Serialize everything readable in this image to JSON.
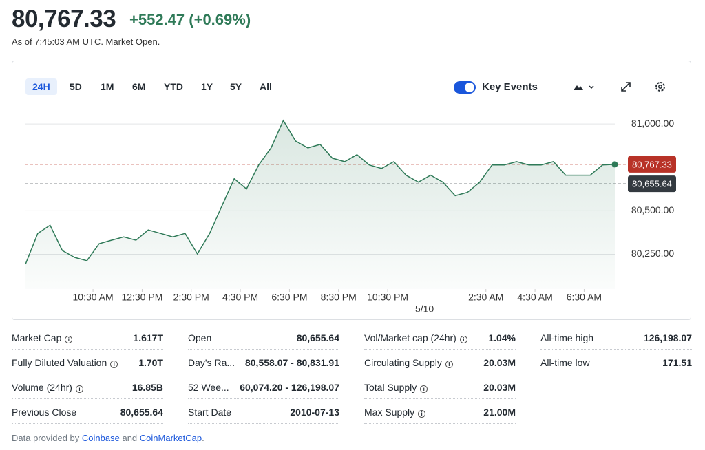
{
  "header": {
    "price": "80,767.33",
    "change": "+552.47",
    "change_percent": "(+0.69%)",
    "subtitle": "As of 7:45:03 AM UTC. Market Open."
  },
  "tabs": [
    "24H",
    "5D",
    "1M",
    "6M",
    "YTD",
    "1Y",
    "5Y",
    "All"
  ],
  "active_tab": 0,
  "key_events": {
    "label": "Key Events",
    "on": true
  },
  "chart_data": {
    "type": "line",
    "x": [
      0,
      0.5,
      1,
      1.5,
      2,
      2.5,
      3,
      3.5,
      4,
      4.5,
      5,
      5.5,
      6,
      6.5,
      7,
      7.5,
      8,
      8.5,
      9,
      9.5,
      10,
      10.5,
      11,
      11.5,
      12,
      12.5,
      13,
      13.5,
      14,
      14.5,
      15,
      15.5,
      16,
      16.5,
      17,
      17.5,
      18,
      18.5,
      19,
      19.5,
      20,
      20.5,
      21,
      21.5,
      22,
      22.5,
      23,
      23.5,
      24
    ],
    "series": [
      {
        "name": "Price",
        "color": "#2f7a58",
        "values": [
          80193,
          80370,
          80417,
          80272,
          80232,
          80213,
          80311,
          80331,
          80350,
          80331,
          80390,
          80370,
          80350,
          80370,
          80252,
          80370,
          80528,
          80685,
          80626,
          80764,
          80862,
          81020,
          80902,
          80862,
          80882,
          80803,
          80783,
          80823,
          80764,
          80744,
          80783,
          80705,
          80665,
          80705,
          80665,
          80587,
          80606,
          80665,
          80764,
          80764,
          80783,
          80764,
          80764,
          80783,
          80705,
          80705,
          80705,
          80764,
          80767.33
        ]
      }
    ],
    "xlim": [
      0,
      24
    ],
    "xticks": [
      {
        "value": 2.75,
        "label": "10:30 AM"
      },
      {
        "value": 4.75,
        "label": "12:30 PM"
      },
      {
        "value": 6.75,
        "label": "2:30 PM"
      },
      {
        "value": 8.75,
        "label": "4:30 PM"
      },
      {
        "value": 10.75,
        "label": "6:30 PM"
      },
      {
        "value": 12.75,
        "label": "8:30 PM"
      },
      {
        "value": 14.75,
        "label": "10:30 PM"
      },
      {
        "value": 18.75,
        "label": "2:30 AM"
      },
      {
        "value": 20.75,
        "label": "4:30 AM"
      },
      {
        "value": 22.75,
        "label": "6:30 AM"
      }
    ],
    "date_marker": {
      "value": 16.25,
      "label": "5/10"
    },
    "ylim": [
      80050,
      81060
    ],
    "yticks": [
      {
        "value": 80250,
        "label": "80,250.00"
      },
      {
        "value": 80500,
        "label": "80,500.00"
      },
      {
        "value": 81000,
        "label": "81,000.00"
      }
    ],
    "reference_lines": [
      {
        "value": 80767.33,
        "label": "80,767.33",
        "color": "#b83227"
      },
      {
        "value": 80655.64,
        "label": "80,655.64",
        "color": "#333a40"
      }
    ],
    "grid": true
  },
  "stats": [
    [
      {
        "label": "Market Cap",
        "value": "1.617T",
        "info": true
      },
      {
        "label": "Fully Diluted Valuation",
        "value": "1.70T",
        "info": true
      },
      {
        "label": "Volume (24hr)",
        "value": "16.85B",
        "info": true
      },
      {
        "label": "Previous Close",
        "value": "80,655.64",
        "info": false
      }
    ],
    [
      {
        "label": "Open",
        "value": "80,655.64",
        "info": false
      },
      {
        "label": "Day's Ra...",
        "value": "80,558.07 - 80,831.91",
        "info": false
      },
      {
        "label": "52 Wee...",
        "value": "60,074.20 - 126,198.07",
        "info": false
      },
      {
        "label": "Start Date",
        "value": "2010-07-13",
        "info": false
      }
    ],
    [
      {
        "label": "Vol/Market cap (24hr)",
        "value": "1.04%",
        "info": true
      },
      {
        "label": "Circulating Supply",
        "value": "20.03M",
        "info": true
      },
      {
        "label": "Total Supply",
        "value": "20.03M",
        "info": true
      },
      {
        "label": "Max Supply",
        "value": "21.00M",
        "info": true
      }
    ],
    [
      {
        "label": "All-time high",
        "value": "126,198.07",
        "info": false
      },
      {
        "label": "All-time low",
        "value": "171.51",
        "info": false
      }
    ]
  ],
  "footer": {
    "prefix": "Data provided by",
    "link1": "Coinbase",
    "and": "and",
    "link2": "CoinMarketCap",
    "suffix": "."
  }
}
